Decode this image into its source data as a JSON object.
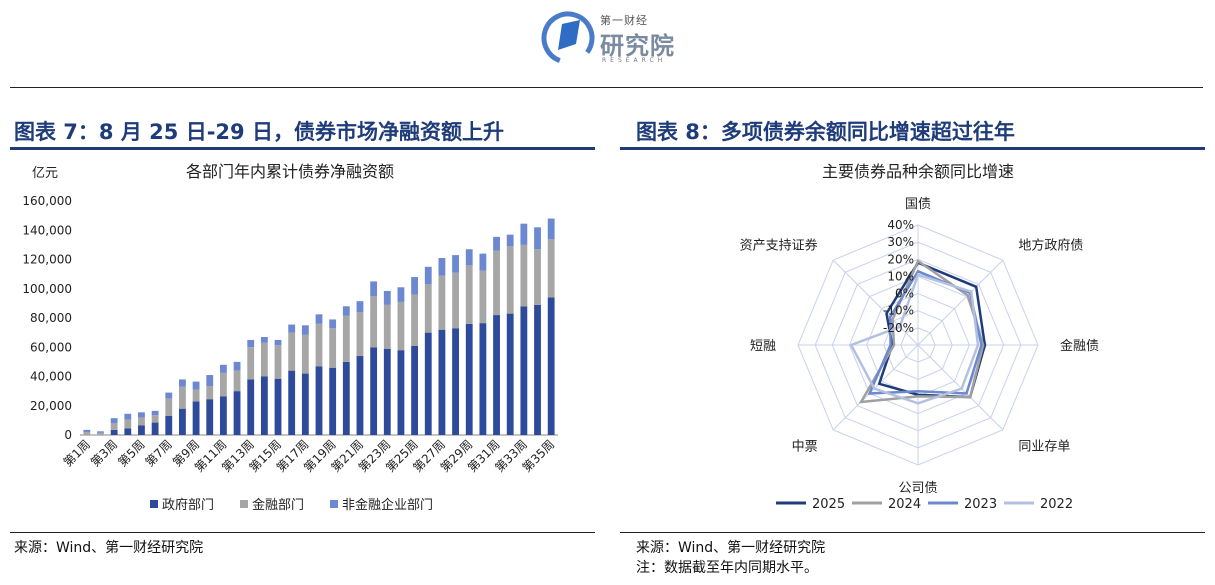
{
  "header": {
    "logo_line1": "第一财经",
    "logo_line2": "研究院",
    "logo_line3": "RESEARCH"
  },
  "left_panel": {
    "title": "图表 7：8 月 25 日-29 日，债券市场净融资额上升",
    "source": "来源：Wind、第一财经研究院"
  },
  "right_panel": {
    "title": "图表 8：多项债券余额同比增速超过往年",
    "source": "来源：Wind、第一财经研究院",
    "note": "注：数据截至年内同期水平。"
  },
  "chart_data": [
    {
      "type": "bar",
      "stacked": true,
      "title": "各部门年内累计债券净融资额",
      "ylabel": "亿元",
      "ylim": [
        0,
        160000
      ],
      "yticks": [
        0,
        20000,
        40000,
        60000,
        80000,
        100000,
        120000,
        140000,
        160000
      ],
      "ytick_labels": [
        "0",
        "20,000",
        "40,000",
        "60,000",
        "80,000",
        "100,000",
        "120,000",
        "140,000",
        "160,000"
      ],
      "categories": [
        "第1周",
        "第2周",
        "第3周",
        "第4周",
        "第5周",
        "第6周",
        "第7周",
        "第8周",
        "第9周",
        "第10周",
        "第11周",
        "第12周",
        "第13周",
        "第14周",
        "第15周",
        "第16周",
        "第17周",
        "第18周",
        "第19周",
        "第20周",
        "第21周",
        "第22周",
        "第23周",
        "第24周",
        "第25周",
        "第26周",
        "第27周",
        "第28周",
        "第29周",
        "第30周",
        "第31周",
        "第32周",
        "第33周",
        "第34周",
        "第35周"
      ],
      "x_tick_labels": [
        "第1周",
        "第3周",
        "第5周",
        "第7周",
        "第9周",
        "第11周",
        "第13周",
        "第15周",
        "第17周",
        "第19周",
        "第21周",
        "第23周",
        "第25周",
        "第27周",
        "第29周",
        "第31周",
        "第33周",
        "第35周"
      ],
      "legend_position": "bottom",
      "colors": [
        "#2e4a9b",
        "#a6a6a6",
        "#6c88d0"
      ],
      "series": [
        {
          "name": "政府部门",
          "values": [
            0,
            0,
            3500,
            4500,
            6500,
            8500,
            13000,
            18000,
            23000,
            24500,
            26500,
            30000,
            38000,
            40000,
            38500,
            44000,
            42000,
            47000,
            46000,
            50000,
            54000,
            60000,
            59000,
            58000,
            61000,
            70000,
            72000,
            73000,
            76000,
            76500,
            82000,
            83000,
            88000,
            89000,
            94000
          ]
        },
        {
          "name": "金融部门",
          "values": [
            2000,
            1500,
            4500,
            6000,
            5500,
            5000,
            12000,
            15000,
            8000,
            9000,
            16000,
            14000,
            22000,
            23000,
            23000,
            26000,
            26500,
            29000,
            27000,
            31500,
            30000,
            35000,
            30000,
            33000,
            35000,
            33000,
            37000,
            38000,
            40000,
            36000,
            44000,
            46000,
            42000,
            38000,
            40000
          ]
        },
        {
          "name": "非金融企业部门",
          "values": [
            1500,
            1000,
            3500,
            4000,
            3500,
            3000,
            4000,
            5000,
            5500,
            7500,
            5500,
            6000,
            5000,
            4000,
            3500,
            5500,
            6500,
            6500,
            6000,
            6500,
            7500,
            10000,
            9500,
            10000,
            12000,
            12000,
            12000,
            12000,
            11000,
            11500,
            9500,
            8000,
            14500,
            15000,
            14000
          ]
        }
      ]
    },
    {
      "type": "radar",
      "title": "主要债券品种余额同比增速",
      "axes": [
        "国债",
        "地方政府债",
        "金融债",
        "同业存单",
        "公司债",
        "中票",
        "短融",
        "资产支持证券"
      ],
      "rlim": [
        -30,
        40
      ],
      "r_ticks": [
        -20,
        -10,
        0,
        10,
        20,
        30,
        40
      ],
      "r_tick_labels": [
        "-20%",
        "-10%",
        "0%",
        "10%",
        "20%",
        "30%",
        "40%"
      ],
      "legend_position": "bottom",
      "colors": [
        "#1f3c7a",
        "#a0a0a0",
        "#6c88d0",
        "#b4c0e0"
      ],
      "series": [
        {
          "name": "2025",
          "values": [
            18,
            18,
            9,
            13,
            -1,
            2,
            -15,
            -4
          ]
        },
        {
          "name": "2024",
          "values": [
            19,
            11,
            8,
            13,
            0,
            17,
            -16,
            -9
          ]
        },
        {
          "name": "2023",
          "values": [
            13,
            13,
            7,
            10,
            -3,
            10,
            -14,
            -7
          ]
        },
        {
          "name": "2022",
          "values": [
            11,
            14,
            5,
            6,
            4,
            6,
            9,
            -15
          ]
        }
      ]
    }
  ]
}
